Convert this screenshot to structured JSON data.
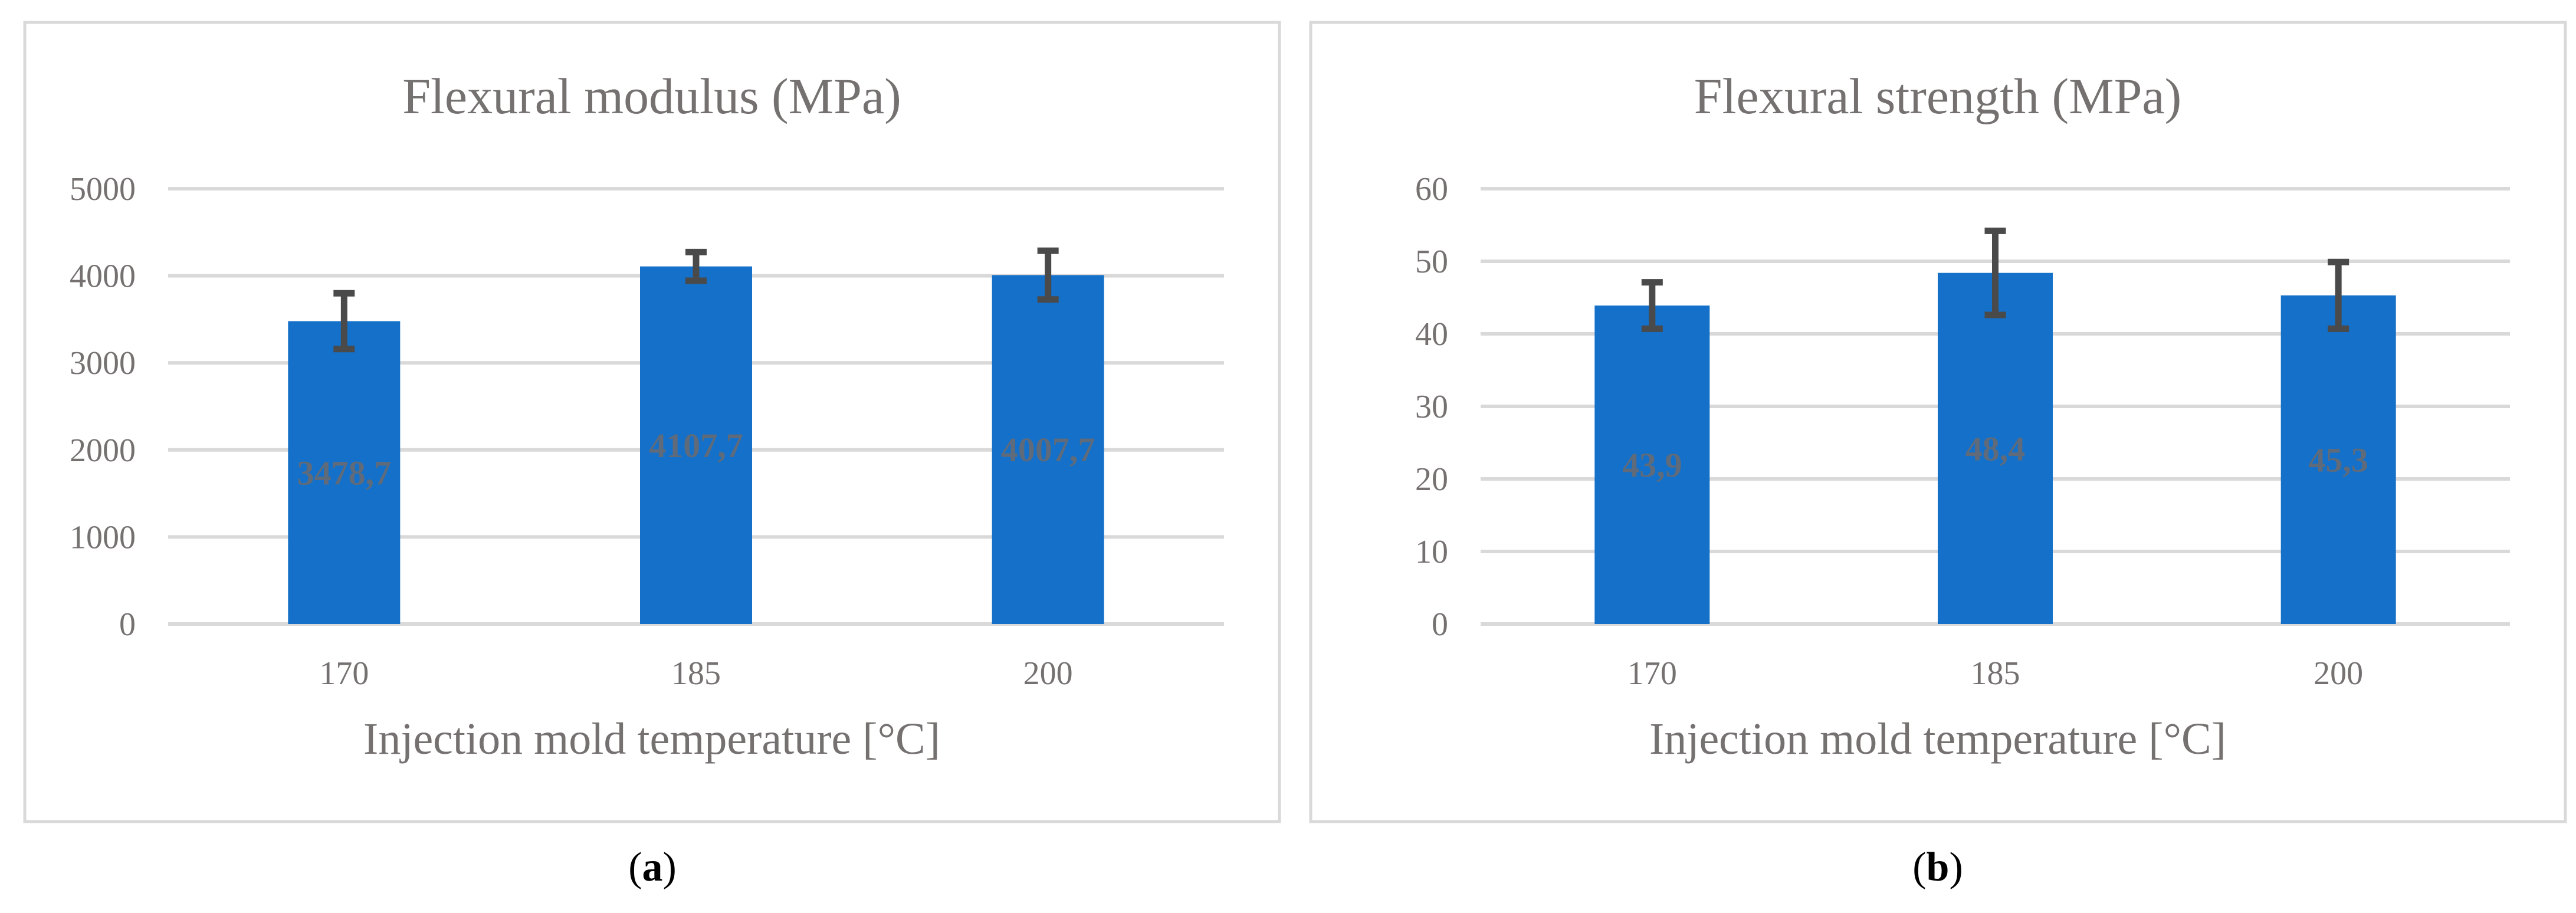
{
  "chart_data": [
    {
      "type": "bar",
      "panel_label": "a",
      "title": "Flexural modulus (MPa)",
      "xlabel": "Injection mold temperature [°C]",
      "ylabel": "",
      "categories": [
        "170",
        "185",
        "200"
      ],
      "values": [
        3478.7,
        4107.7,
        4007.7
      ],
      "value_labels": [
        "3478,7",
        "4107,7",
        "4007,7"
      ],
      "errors": [
        320,
        165,
        280
      ],
      "ylim": [
        0,
        5000
      ],
      "yticks": [
        0,
        1000,
        2000,
        3000,
        4000,
        5000
      ],
      "grid": true,
      "legend": "none",
      "bar_color": "#1470c8"
    },
    {
      "type": "bar",
      "panel_label": "b",
      "title": "Flexural strength (MPa)",
      "xlabel": "Injection mold temperature [°C]",
      "ylabel": "",
      "categories": [
        "170",
        "185",
        "200"
      ],
      "values": [
        43.9,
        48.4,
        45.3
      ],
      "value_labels": [
        "43,9",
        "48,4",
        "45,3"
      ],
      "errors": [
        3.2,
        5.8,
        4.6
      ],
      "ylim": [
        0,
        60
      ],
      "yticks": [
        0,
        10,
        20,
        30,
        40,
        50,
        60
      ],
      "grid": true,
      "legend": "none",
      "bar_color": "#1470c8"
    }
  ]
}
